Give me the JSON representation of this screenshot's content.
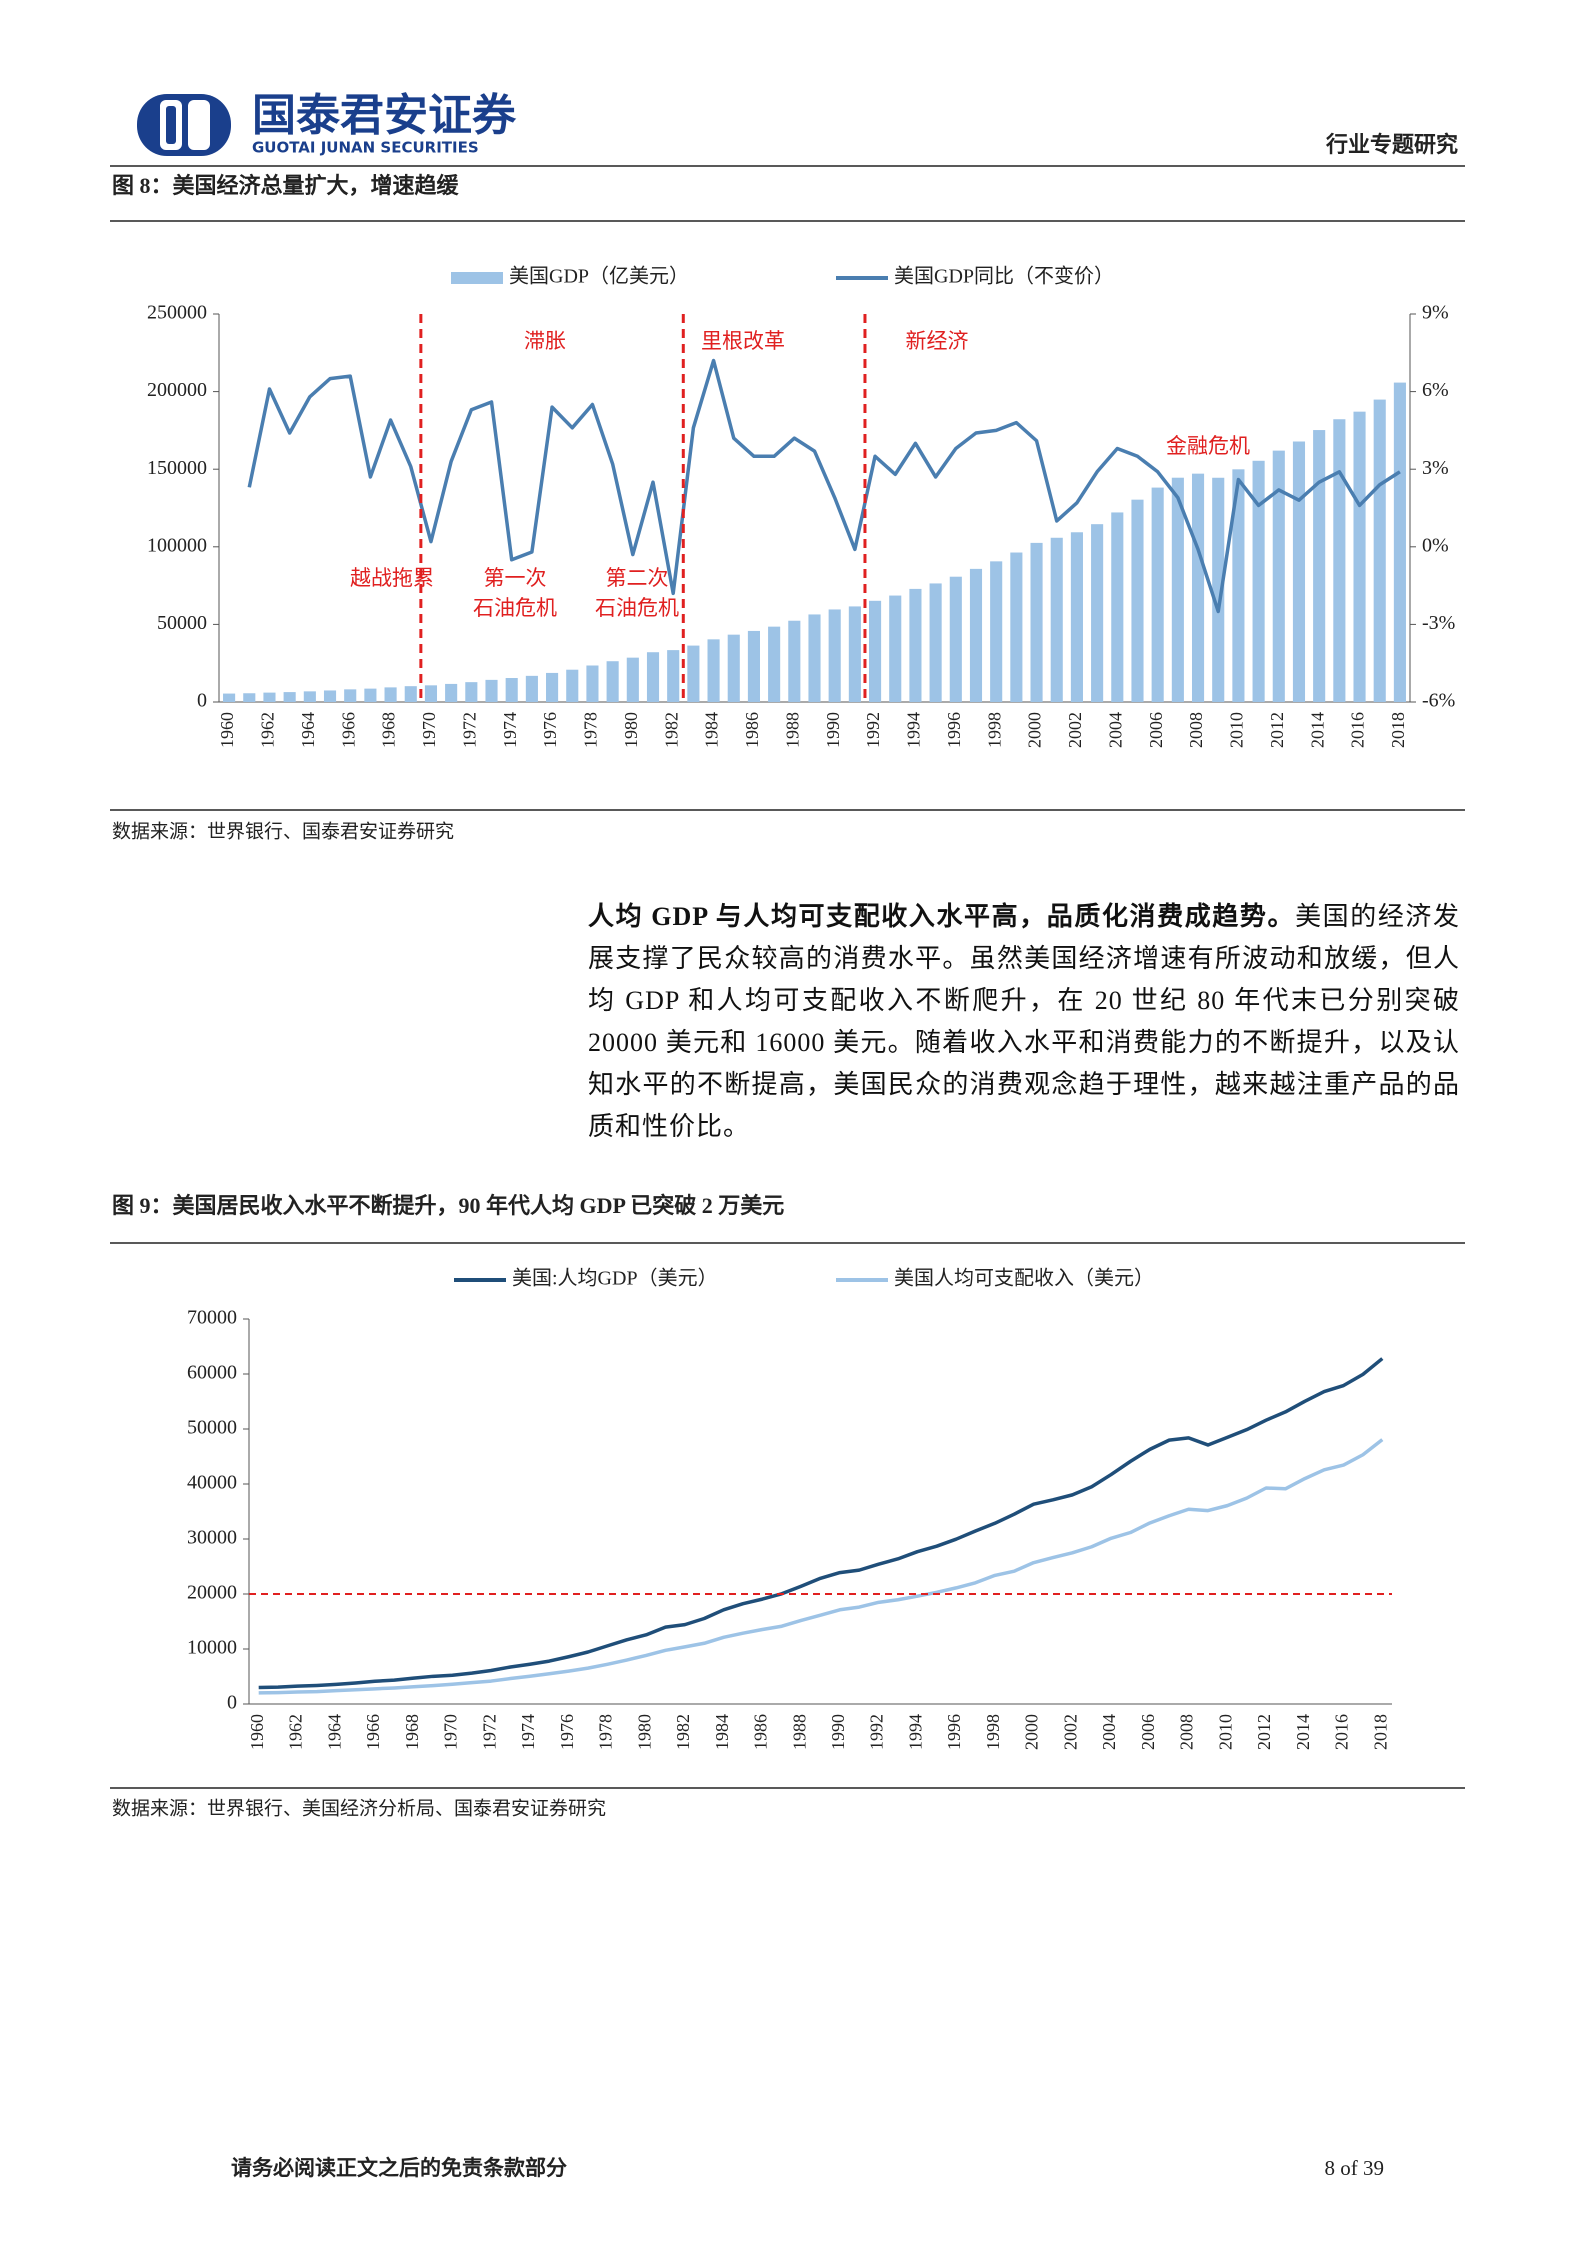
{
  "header": {
    "logo_cn": "国泰君安证券",
    "logo_en": "GUOTAI JUNAN SECURITIES",
    "section": "行业专题研究"
  },
  "figure8": {
    "caption": "图 8：美国经济总量扩大，增速趋缓",
    "source": "数据来源：世界银行、国泰君安证券研究"
  },
  "paragraph": {
    "lead": "人均 GDP 与人均可支配收入水平高，品质化消费成趋势。",
    "body": "美国的经济发展支撑了民众较高的消费水平。虽然美国经济增速有所波动和放缓，但人均 GDP 和人均可支配收入不断爬升，在 20 世纪 80 年代末已分别突破 20000 美元和 16000 美元。随着收入水平和消费能力的不断提升，以及认知水平的不断提高，美国民众的消费观念趋于理性，越来越注重产品的品质和性价比。"
  },
  "figure9": {
    "caption": "图 9：美国居民收入水平不断提升，90 年代人均 GDP 已突破 2 万美元",
    "source": "数据来源：世界银行、美国经济分析局、国泰君安证券研究"
  },
  "footer": {
    "disclaimer": "请务必阅读正文之后的免责条款部分",
    "page": "8 of 39"
  },
  "chart_data": [
    {
      "type": "combo",
      "categories": [
        "1960",
        null,
        "1962",
        null,
        "1964",
        null,
        "1966",
        null,
        "1968",
        null,
        "1970",
        null,
        "1972",
        null,
        "1974",
        null,
        "1976",
        null,
        "1978",
        null,
        "1980",
        null,
        "1982",
        null,
        "1984",
        null,
        "1986",
        null,
        "1988",
        null,
        "1990",
        null,
        "1992",
        null,
        "1994",
        null,
        "1996",
        null,
        "1998",
        null,
        "2000",
        null,
        "2002",
        null,
        "2004",
        null,
        "2006",
        null,
        "2008",
        null,
        "2010",
        null,
        "2012",
        null,
        "2014",
        null,
        "2016",
        null,
        "2018"
      ],
      "series": [
        {
          "name": "美国GDP（亿美元）",
          "type": "bar",
          "color": "#9dc3e6",
          "values": [
            5433,
            5633,
            6051,
            6386,
            6858,
            7437,
            8150,
            8617,
            9425,
            10199,
            10737,
            11649,
            12793,
            14257,
            15452,
            16849,
            18733,
            20812,
            23516,
            26275,
            28573,
            32074,
            33433,
            36343,
            40373,
            43389,
            45792,
            48550,
            52366,
            56417,
            59631,
            61581,
            65203,
            68587,
            72873,
            76397,
            80732,
            85779,
            90625,
            96309,
            102523,
            105818,
            109364,
            114581,
            122137,
            130366,
            138146,
            144518,
            147128,
            144487,
            149921,
            155426,
            161970,
            167848,
            175217,
            182193,
            187072,
            194854,
            205802
          ]
        },
        {
          "name": "美国GDP同比（不变价）",
          "type": "line",
          "axis": "y2",
          "color": "#4a7eb0",
          "values": [
            null,
            2.3,
            6.1,
            4.4,
            5.8,
            6.5,
            6.6,
            2.7,
            4.9,
            3.1,
            0.2,
            3.3,
            5.3,
            5.6,
            -0.5,
            -0.2,
            5.4,
            4.6,
            5.5,
            3.2,
            -0.3,
            2.5,
            -1.8,
            4.6,
            7.2,
            4.2,
            3.5,
            3.5,
            4.2,
            3.7,
            1.9,
            -0.1,
            3.5,
            2.8,
            4.0,
            2.7,
            3.8,
            4.4,
            4.5,
            4.8,
            4.1,
            1.0,
            1.7,
            2.9,
            3.8,
            3.5,
            2.9,
            1.9,
            -0.1,
            -2.5,
            2.6,
            1.6,
            2.2,
            1.8,
            2.5,
            2.9,
            1.6,
            2.4,
            2.9
          ]
        }
      ],
      "ylim": [
        0,
        250000
      ],
      "yticks": [
        0,
        50000,
        100000,
        150000,
        200000,
        250000
      ],
      "y2lim": [
        -6,
        9
      ],
      "y2ticks": [
        {
          "value": -6,
          "label": "-6%"
        },
        {
          "value": -3,
          "label": "-3%"
        },
        {
          "value": 0,
          "label": "0%"
        },
        {
          "value": 3,
          "label": "3%"
        },
        {
          "value": 6,
          "label": "6%"
        },
        {
          "value": 9,
          "label": "9%"
        }
      ],
      "vlines": [
        1969.5,
        1982.5,
        1991.5
      ],
      "vline_color": "#e02020",
      "annotations": [
        [
          "滞胀"
        ],
        [
          "里根改革"
        ],
        [
          "新经济"
        ],
        [
          "越战拖累"
        ],
        [
          "第一次",
          "石油危机"
        ],
        [
          "第二次",
          "石油危机"
        ],
        [
          "金融危机"
        ]
      ],
      "annotation_color": "#e02020",
      "legend": "top"
    },
    {
      "type": "line",
      "categories": [
        "1960",
        null,
        "1962",
        null,
        "1964",
        null,
        "1966",
        null,
        "1968",
        null,
        "1970",
        null,
        "1972",
        null,
        "1974",
        null,
        "1976",
        null,
        "1978",
        null,
        "1980",
        null,
        "1982",
        null,
        "1984",
        null,
        "1986",
        null,
        "1988",
        null,
        "1990",
        null,
        "1992",
        null,
        "1994",
        null,
        "1996",
        null,
        "1998",
        null,
        "2000",
        null,
        "2002",
        null,
        "2004",
        null,
        "2006",
        null,
        "2008",
        null,
        "2010",
        null,
        "2012",
        null,
        "2014",
        null,
        "2016",
        null,
        "2018"
      ],
      "series": [
        {
          "name": "美国:人均GDP（美元）",
          "color": "#1f4e79",
          "values": [
            3007,
            3067,
            3244,
            3375,
            3574,
            3828,
            4146,
            4336,
            4696,
            5032,
            5234,
            5609,
            6094,
            6726,
            7226,
            7801,
            8592,
            9453,
            10565,
            11674,
            12575,
            13976,
            14434,
            15544,
            17121,
            18237,
            19071,
            20039,
            21417,
            22857,
            23889,
            24342,
            25419,
            26387,
            27695,
            28691,
            29968,
            31459,
            32854,
            34516,
            36335,
            37133,
            38023,
            39497,
            41712,
            44115,
            46299,
            47976,
            48383,
            47100,
            48467,
            49883,
            51603,
            53107,
            55033,
            56803,
            57904,
            59928,
            62805
          ]
        },
        {
          "name": "美国人均可支配收入（美元）",
          "color": "#9dc3e6",
          "values": [
            2022,
            2078,
            2171,
            2244,
            2425,
            2580,
            2760,
            2910,
            3130,
            3345,
            3600,
            3880,
            4170,
            4630,
            5050,
            5500,
            5970,
            6520,
            7220,
            7990,
            8830,
            9760,
            10390,
            11040,
            12120,
            12880,
            13540,
            14140,
            15190,
            16150,
            17130,
            17620,
            18480,
            18960,
            19600,
            20310,
            21110,
            22040,
            23380,
            24150,
            25700,
            26630,
            27490,
            28590,
            30130,
            31180,
            32910,
            34230,
            35410,
            35170,
            36070,
            37430,
            39270,
            39130,
            40980,
            42580,
            43450,
            45320,
            48060
          ]
        }
      ],
      "ylim": [
        0,
        70000
      ],
      "yticks": [
        0,
        10000,
        20000,
        30000,
        40000,
        50000,
        60000,
        70000
      ],
      "hlines": [
        20000
      ],
      "hline_color": "#e02020",
      "legend": "top"
    }
  ]
}
